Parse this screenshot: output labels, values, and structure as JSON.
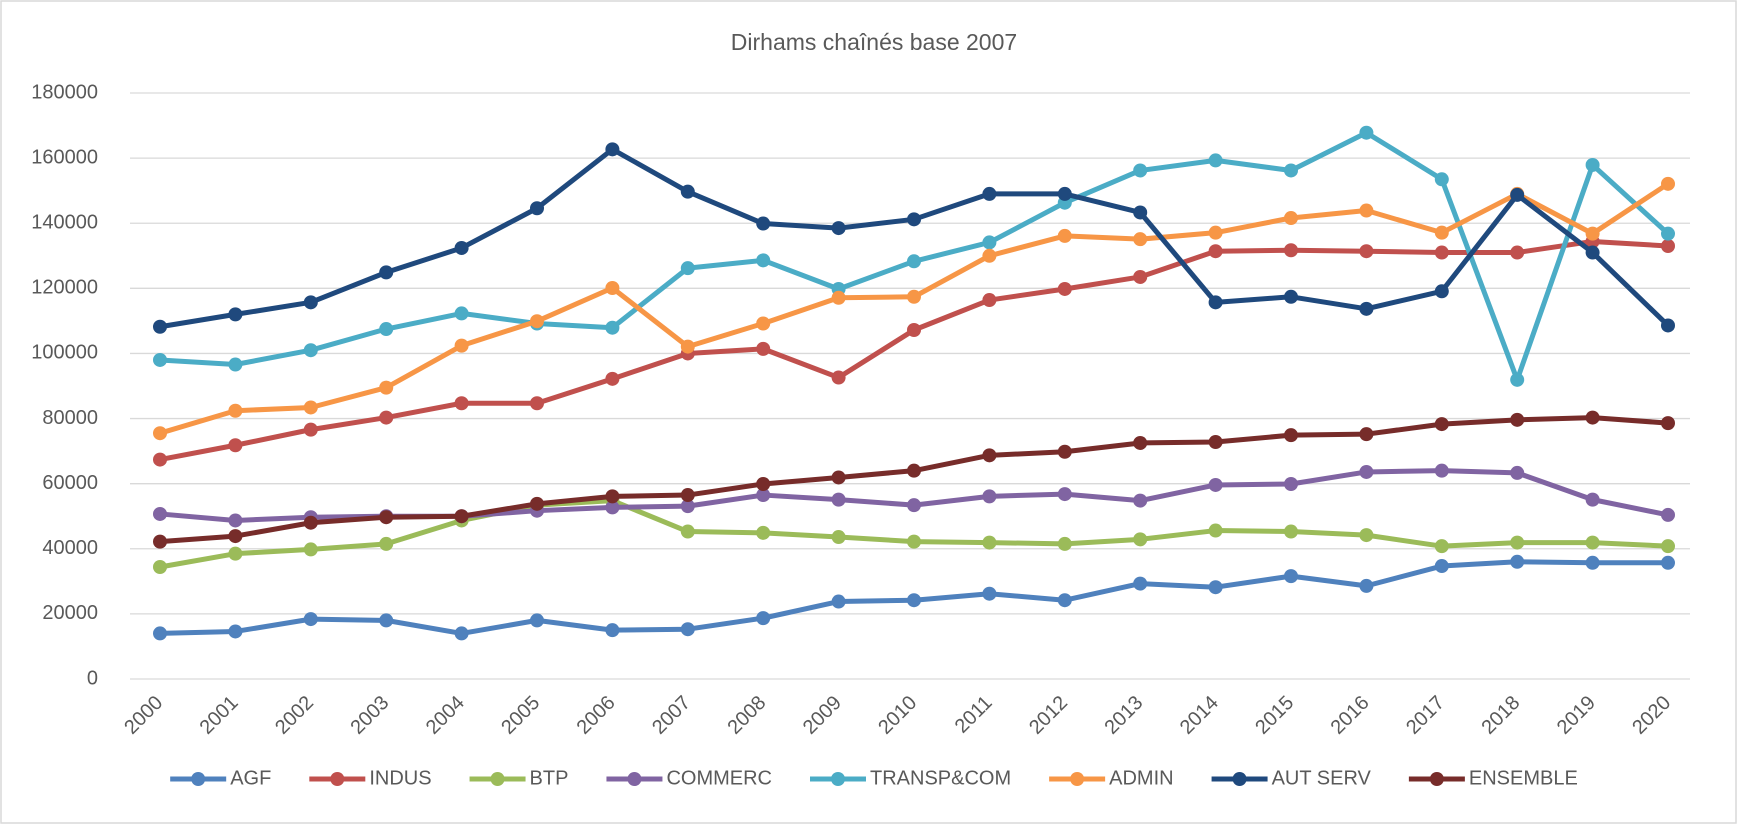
{
  "chart_data": {
    "type": "line",
    "title": "Dirhams chaînés base 2007",
    "categories": [
      "2000",
      "2001",
      "2002",
      "2003",
      "2004",
      "2005",
      "2006",
      "2007",
      "2008",
      "2009",
      "2010",
      "2011",
      "2012",
      "2013",
      "2014",
      "2015",
      "2016",
      "2017",
      "2018",
      "2019",
      "2020"
    ],
    "ylim": [
      0,
      180000
    ],
    "yticks": [
      0,
      20000,
      40000,
      60000,
      80000,
      100000,
      120000,
      140000,
      160000,
      180000
    ],
    "grid": true,
    "legend": "bottom",
    "series": [
      {
        "name": "AGF",
        "color": "#4f81bd",
        "values": [
          14000,
          14600,
          18400,
          18000,
          14000,
          18000,
          15000,
          15300,
          18700,
          23800,
          24200,
          26200,
          24200,
          29300,
          28200,
          31600,
          28600,
          34700,
          36000,
          35700,
          35700
        ]
      },
      {
        "name": "INDUS",
        "color": "#c0504d",
        "values": [
          67400,
          71800,
          76600,
          80300,
          84700,
          84700,
          92200,
          100000,
          101400,
          92600,
          107200,
          116400,
          119800,
          123500,
          131400,
          131700,
          131400,
          131000,
          131000,
          134400,
          133000
        ]
      },
      {
        "name": "BTP",
        "color": "#9bbb59",
        "values": [
          34400,
          38500,
          39800,
          41500,
          48700,
          53400,
          54800,
          45300,
          44900,
          43600,
          42200,
          41900,
          41500,
          42900,
          45600,
          45300,
          44200,
          40800,
          41900,
          41900,
          40800
        ]
      },
      {
        "name": "COMMERC",
        "color": "#8064a2",
        "values": [
          50700,
          48700,
          49700,
          50000,
          50000,
          51700,
          52700,
          53100,
          56500,
          55100,
          53400,
          56100,
          56800,
          54800,
          59600,
          59900,
          63600,
          64000,
          63300,
          55100,
          50400
        ]
      },
      {
        "name": "TRANSP&COM",
        "color": "#4bacc6",
        "values": [
          98000,
          96600,
          101000,
          107500,
          112300,
          109200,
          107900,
          126200,
          128600,
          119800,
          128300,
          134100,
          146300,
          156200,
          159300,
          156200,
          167800,
          153500,
          91900,
          157900,
          136800
        ]
      },
      {
        "name": "ADMIN",
        "color": "#f79646",
        "values": [
          75500,
          82400,
          83400,
          89500,
          102400,
          109900,
          120100,
          102100,
          109200,
          117100,
          117400,
          130000,
          136100,
          135100,
          137100,
          141600,
          143900,
          137100,
          149000,
          136800,
          152100
        ]
      },
      {
        "name": "AUT SERV",
        "color": "#1f497d",
        "values": [
          108200,
          112000,
          115700,
          124900,
          132400,
          144600,
          162700,
          149700,
          139900,
          138500,
          141200,
          149000,
          149000,
          143300,
          115700,
          117400,
          113700,
          119100,
          148700,
          131000,
          108600
        ]
      },
      {
        "name": "ENSEMBLE",
        "color": "#772c2a",
        "values": [
          42200,
          43900,
          48000,
          49700,
          50000,
          53800,
          56100,
          56500,
          59900,
          61900,
          64000,
          68700,
          69800,
          72500,
          72800,
          74900,
          75200,
          78300,
          79600,
          80300,
          78600
        ]
      }
    ]
  }
}
